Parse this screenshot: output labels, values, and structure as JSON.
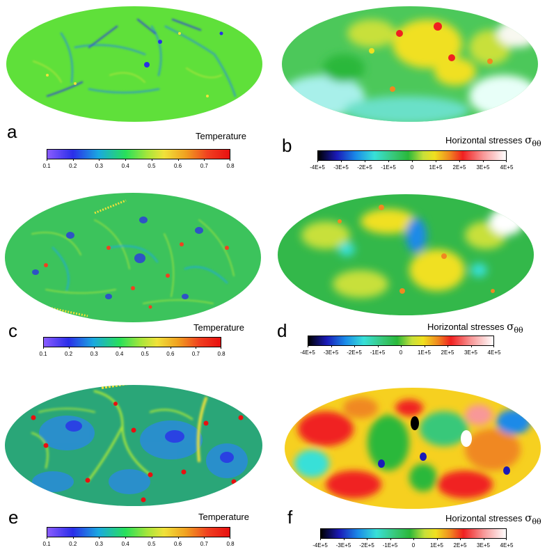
{
  "panels": [
    {
      "letter": "a",
      "title": "Temperature",
      "scale": "temperature",
      "ticks": [
        "0.1",
        "0.2",
        "0.3",
        "0.4",
        "0.5",
        "0.6",
        "0.7",
        "0.8"
      ],
      "colors": {
        "base": "#5fe03a"
      }
    },
    {
      "letter": "b",
      "title": "Horizontal stresses",
      "symbol": "σ",
      "subscript": "θθ",
      "scale": "stress",
      "ticks": [
        "-4E+5",
        "-3E+5",
        "-2E+5",
        "-1E+5",
        "0",
        "1E+5",
        "2E+5",
        "3E+5",
        "4E+5"
      ],
      "colors": {
        "base": "#4cc85a"
      }
    },
    {
      "letter": "c",
      "title": "Temperature",
      "scale": "temperature",
      "ticks": [
        "0.1",
        "0.2",
        "0.3",
        "0.4",
        "0.5",
        "0.6",
        "0.7",
        "0.8"
      ],
      "colors": {
        "base": "#3cc35c"
      }
    },
    {
      "letter": "d",
      "title": "Horizontal stresses",
      "symbol": "σ",
      "subscript": "θθ",
      "scale": "stress",
      "ticks": [
        "-4E+5",
        "-3E+5",
        "-2E+5",
        "-1E+5",
        "0",
        "1E+5",
        "2E+5",
        "3E+5",
        "4E+5"
      ],
      "colors": {
        "base": "#33b84a"
      }
    },
    {
      "letter": "e",
      "title": "Temperature",
      "scale": "temperature",
      "ticks": [
        "0.1",
        "0.2",
        "0.3",
        "0.4",
        "0.5",
        "0.6",
        "0.7",
        "0.8"
      ],
      "colors": {
        "base": "#2aa678"
      }
    },
    {
      "letter": "f",
      "title": "Horizontal stresses",
      "symbol": "σ",
      "subscript": "θθ",
      "scale": "stress",
      "ticks": [
        "-4E+5",
        "-3E+5",
        "-2E+5",
        "-1E+5",
        "0",
        "1E+5",
        "2E+5",
        "3E+5",
        "4E+5"
      ],
      "colors": {
        "base": "#f6d020"
      }
    }
  ],
  "scales": {
    "temperature": [
      "#8a5cff",
      "#2a2ee8",
      "#1aa8e0",
      "#28e05a",
      "#a8e63a",
      "#f0e23a",
      "#f0a020",
      "#f04020",
      "#e81010"
    ],
    "stress": [
      "#000000",
      "#1a1ab8",
      "#1a8ae8",
      "#38e0d8",
      "#38c87a",
      "#2ab83a",
      "#c8e03a",
      "#f0e020",
      "#f08820",
      "#f02020",
      "#f89898",
      "#ffffff"
    ]
  }
}
